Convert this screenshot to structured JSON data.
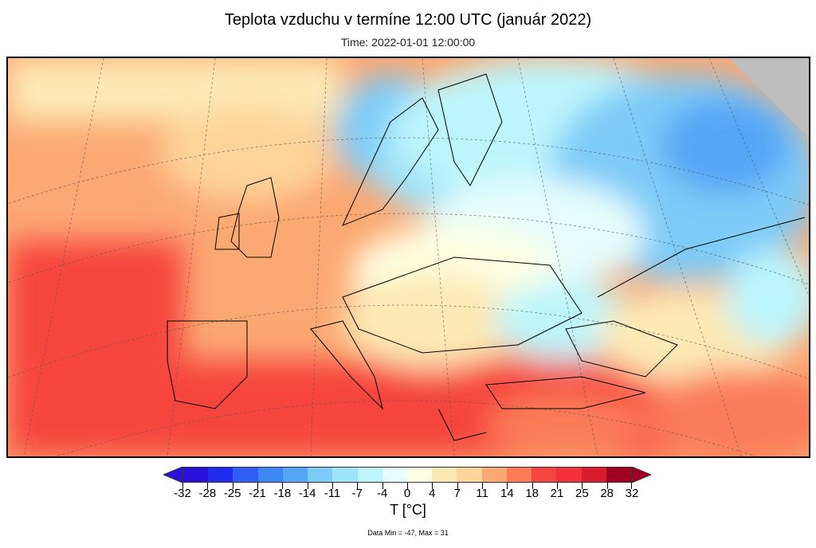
{
  "title": "Teplota vzduchu v termíne 12:00 UTC (január 2022)",
  "subtitle": "Time: 2022-01-01 12:00:00",
  "colorbar": {
    "unit_label": "T [°C]",
    "tick_labels": [
      "-32",
      "-28",
      "-25",
      "-21",
      "-18",
      "-14",
      "-11",
      "-7",
      "-4",
      "0",
      "4",
      "7",
      "11",
      "14",
      "18",
      "21",
      "25",
      "28",
      "32"
    ],
    "colors": [
      "#2a10d8",
      "#1f2cf0",
      "#2f5ff5",
      "#3f86f5",
      "#55a5f5",
      "#7dcbf8",
      "#9de3fa",
      "#bdf5fc",
      "#e6fdfd",
      "#fefee2",
      "#fde9b4",
      "#fdd49a",
      "#fca872",
      "#fb7b58",
      "#f6443e",
      "#f2303a",
      "#d81c2e",
      "#a10020"
    ],
    "under_color": "#2a10d8",
    "over_color": "#a10020"
  },
  "data_minmax": "Data Min = -47, Max = 31",
  "no_data_color": "#bebebe"
}
